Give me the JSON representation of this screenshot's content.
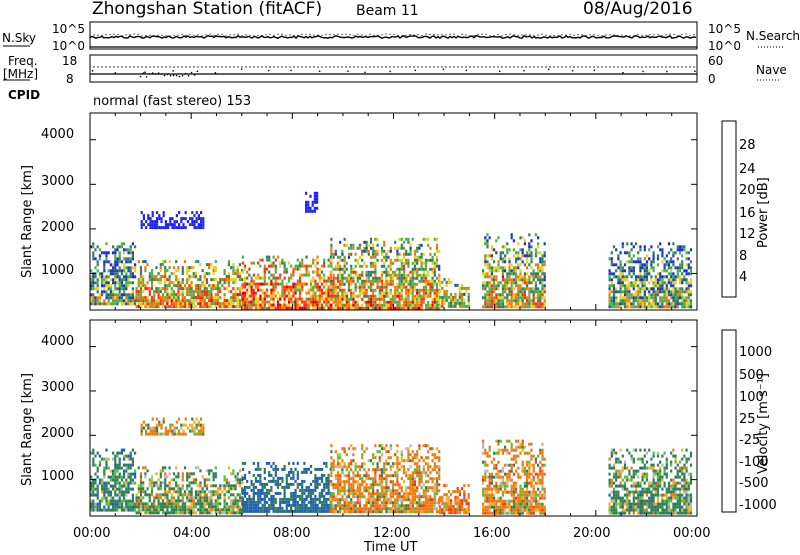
{
  "header": {
    "station": "Zhongshan Station (fitACF)",
    "beam": "Beam 11",
    "date": "08/Aug/2016"
  },
  "noise_panel": {
    "left_label": "N.Sky",
    "right_label": "N.Search",
    "left_ticks": [
      "10^5",
      "10^0"
    ],
    "right_ticks": [
      "10^5",
      "10^0"
    ]
  },
  "freq_panel": {
    "left_label_line1": "Freq.",
    "left_label_line2": "[MHz]",
    "right_label": "Nave",
    "left_ticks": [
      "18",
      "8"
    ],
    "right_ticks": [
      "60",
      "0"
    ]
  },
  "cpid": {
    "label": "CPID",
    "value": "normal (fast stereo) 153"
  },
  "power_panel": {
    "ylabel": "Slant Range [km]",
    "yticks": [
      "4000",
      "3000",
      "2000",
      "1000"
    ],
    "colorbar_label": "Power [dB]",
    "colorbar_ticks": [
      "28",
      "24",
      "20",
      "16",
      "12",
      "8",
      "4"
    ],
    "colors": [
      "#2020ff",
      "#1f3fa8",
      "#2f7f5f",
      "#49b04a",
      "#e8d020",
      "#f07a10",
      "#ff3010",
      "#e00000"
    ]
  },
  "velocity_panel": {
    "ylabel": "Slant Range [km]",
    "yticks": [
      "4000",
      "3000",
      "2000",
      "1000"
    ],
    "colorbar_label": "Velocity [m s⁻¹]",
    "colorbar_ticks": [
      "1000",
      "500",
      "100",
      "25",
      "-25",
      "-100",
      "-500",
      "-1000"
    ],
    "colors": [
      "#1a3fd0",
      "#2060b0",
      "#2e8050",
      "#50c040",
      "#b8b8b8",
      "#f0b020",
      "#f07810",
      "#f04010",
      "#e00000"
    ]
  },
  "xaxis": {
    "ticks": [
      "00:00",
      "04:00",
      "08:00",
      "12:00",
      "16:00",
      "20:00",
      "00:00"
    ],
    "label": "Time UT"
  },
  "chart_data": [
    {
      "type": "heatmap",
      "title": "",
      "xlabel": "Time UT",
      "ylabel": "Slant Range [km]",
      "xlim": [
        0,
        24
      ],
      "ylim": [
        180,
        4600
      ],
      "colorbar": "Power [dB]",
      "colorbar_range": [
        0,
        30
      ],
      "echo_regions": [
        {
          "t": [
            0.0,
            1.8
          ],
          "range": [
            300,
            1700
          ],
          "level": 14
        },
        {
          "t": [
            1.8,
            6.0
          ],
          "range": [
            250,
            1300
          ],
          "level": 20
        },
        {
          "t": [
            2.0,
            4.5
          ],
          "range": [
            2000,
            2400
          ],
          "level": 8
        },
        {
          "t": [
            6.0,
            9.5
          ],
          "range": [
            250,
            1400
          ],
          "level": 22
        },
        {
          "t": [
            8.5,
            9.0
          ],
          "range": [
            2400,
            2900
          ],
          "level": 8
        },
        {
          "t": [
            9.5,
            13.8
          ],
          "range": [
            250,
            1800
          ],
          "level": 20
        },
        {
          "t": [
            13.8,
            15.0
          ],
          "range": [
            250,
            900
          ],
          "level": 16
        },
        {
          "t": [
            15.5,
            18.0
          ],
          "range": [
            250,
            1900
          ],
          "level": 18
        },
        {
          "t": [
            20.5,
            23.8
          ],
          "range": [
            250,
            1700
          ],
          "level": 14
        }
      ]
    },
    {
      "type": "heatmap",
      "title": "",
      "xlabel": "Time UT",
      "ylabel": "Slant Range [km]",
      "xlim": [
        0,
        24
      ],
      "ylim": [
        180,
        4600
      ],
      "colorbar": "Velocity [m s⁻¹]",
      "colorbar_ticks": [
        1000,
        500,
        100,
        25,
        -25,
        -100,
        -500,
        -1000
      ],
      "echo_regions": [
        {
          "t": [
            0.0,
            1.8
          ],
          "range": [
            300,
            1700
          ],
          "velocity": 300
        },
        {
          "t": [
            1.8,
            6.0
          ],
          "range": [
            250,
            1300
          ],
          "velocity": 150
        },
        {
          "t": [
            2.0,
            4.5
          ],
          "range": [
            2000,
            2400
          ],
          "velocity": -100
        },
        {
          "t": [
            6.0,
            9.5
          ],
          "range": [
            250,
            1400
          ],
          "velocity": 600
        },
        {
          "t": [
            9.5,
            13.8
          ],
          "range": [
            250,
            1800
          ],
          "velocity": -200
        },
        {
          "t": [
            13.8,
            15.0
          ],
          "range": [
            250,
            900
          ],
          "velocity": -300
        },
        {
          "t": [
            15.5,
            18.0
          ],
          "range": [
            250,
            1900
          ],
          "velocity": -200
        },
        {
          "t": [
            20.5,
            23.8
          ],
          "range": [
            250,
            1700
          ],
          "velocity": 200
        }
      ]
    }
  ]
}
